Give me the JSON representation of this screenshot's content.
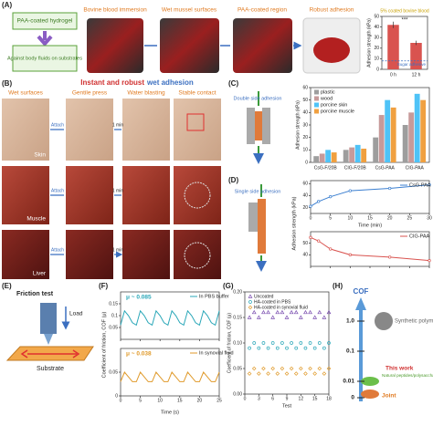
{
  "panel_a": {
    "label": "(A)",
    "box_top": "PAA-coated hydrogel",
    "box_bottom": "Against body fluids on substrates",
    "steps": [
      "Bovine blood immersion",
      "Wet mussel surfaces",
      "PAA-coated region",
      "Robust adhesion"
    ],
    "chart": {
      "type": "bar",
      "title": "5% coated bovine blood",
      "ylabel": "Adhesion strength (kPa)",
      "categories": [
        "0 h",
        "12 h"
      ],
      "values": [
        42,
        25
      ],
      "errors": [
        3,
        2
      ],
      "color": "#d9534f",
      "ylim": [
        0,
        50
      ],
      "yticks": [
        0,
        10,
        20,
        30,
        40,
        50
      ],
      "annotation": "***",
      "reference": {
        "label": "Sugar adhesive",
        "value": 8
      }
    }
  },
  "panel_b": {
    "label": "(B)",
    "title_1": "Instant and robust",
    "title_2": "wet adhesion",
    "columns": [
      "Wet surfaces",
      "Gentile press",
      "Water blasting",
      "Stable contact"
    ],
    "rows": [
      "Skin",
      "Muscle",
      "Liver"
    ],
    "attach": "Attach",
    "duration": "1 min"
  },
  "panel_c": {
    "label": "(C)",
    "diagram_label": "Double side adhesion",
    "chart": {
      "type": "bar",
      "ylabel": "Adhesion strength (kPa)",
      "categories": [
        "CsG-F/20B",
        "CIG-F/20B",
        "CsG-PAA",
        "CIG-PAA"
      ],
      "series": [
        {
          "name": "plastic",
          "color": "#9e9e9e",
          "values": [
            5,
            10,
            20,
            30
          ]
        },
        {
          "name": "wood",
          "color": "#c79a9a",
          "values": [
            7,
            12,
            38,
            40
          ]
        },
        {
          "name": "porcine skin",
          "color": "#4fc3f7",
          "values": [
            10,
            14,
            50,
            55
          ]
        },
        {
          "name": "porcine muscle",
          "color": "#f0a040",
          "values": [
            8,
            11,
            44,
            50
          ]
        }
      ],
      "ylim": [
        0,
        60
      ],
      "yticks": [
        0,
        10,
        20,
        30,
        40,
        50,
        60
      ],
      "legend": "top-left"
    }
  },
  "panel_d": {
    "label": "(D)",
    "diagram_label": "Single side adhesion",
    "xlabel": "Time (min)",
    "ylabel": "Adhesion strength (kPa)",
    "charts": [
      {
        "type": "line",
        "name": "CsG-PAA",
        "color": "#3b7fd0",
        "x": [
          0,
          2,
          5,
          10,
          20,
          30
        ],
        "values": [
          22,
          30,
          38,
          48,
          52,
          58
        ],
        "xlim": [
          0,
          30
        ],
        "xticks": [
          0,
          5,
          10,
          15,
          20,
          25,
          30
        ],
        "ylim": [
          10,
          65
        ],
        "yticks": [
          20,
          40,
          60
        ]
      },
      {
        "type": "line",
        "name": "CIG-PAA",
        "color": "#d9534f",
        "x": [
          0,
          2,
          5,
          10,
          20,
          30
        ],
        "values": [
          55,
          52,
          45,
          40,
          38,
          35
        ],
        "xlim": [
          0,
          30
        ],
        "xticks": [
          0,
          5,
          10,
          15,
          20,
          25,
          30
        ],
        "ylim": [
          30,
          60
        ],
        "yticks": [
          40,
          50
        ]
      }
    ]
  },
  "panel_e": {
    "label": "(E)",
    "title": "Friction test",
    "load": "Load",
    "substrate": "Substrate"
  },
  "panel_f": {
    "label": "(F)",
    "ylabel": "Coefficient of friction, COF (μ)",
    "xlabel": "Time (s)",
    "charts": [
      {
        "type": "line",
        "name": "In PBS buffer",
        "annotation": "μ ~ 0.085",
        "color": "#2aa7b8",
        "x": [
          0,
          1,
          2,
          3,
          4,
          5,
          6,
          7,
          8,
          9,
          10,
          11,
          12,
          13,
          14,
          15,
          16,
          17,
          18,
          19,
          20,
          21,
          22,
          23,
          24,
          25
        ],
        "values": [
          0.06,
          0.12,
          0.1,
          0.07,
          0.06,
          0.12,
          0.1,
          0.07,
          0.06,
          0.12,
          0.1,
          0.07,
          0.06,
          0.12,
          0.1,
          0.07,
          0.06,
          0.12,
          0.1,
          0.07,
          0.06,
          0.12,
          0.1,
          0.07,
          0.06,
          0.12
        ],
        "xlim": [
          0,
          25
        ],
        "xticks": [
          0,
          5,
          10,
          15,
          20,
          25
        ],
        "ylim": [
          0,
          0.2
        ],
        "yticks": [
          0.05,
          0.1,
          0.15
        ]
      },
      {
        "type": "line",
        "name": "In synovial fluid",
        "annotation": "μ ~ 0.038",
        "color": "#e09a2a",
        "x": [
          0,
          1,
          2,
          3,
          4,
          5,
          6,
          7,
          8,
          9,
          10,
          11,
          12,
          13,
          14,
          15,
          16,
          17,
          18,
          19,
          20,
          21,
          22,
          23,
          24,
          25
        ],
        "values": [
          0.03,
          0.05,
          0.04,
          0.03,
          0.03,
          0.05,
          0.04,
          0.03,
          0.03,
          0.05,
          0.04,
          0.03,
          0.03,
          0.05,
          0.04,
          0.03,
          0.03,
          0.05,
          0.04,
          0.03,
          0.03,
          0.05,
          0.04,
          0.03,
          0.03,
          0.05
        ],
        "xlim": [
          0,
          25
        ],
        "xticks": [
          0,
          5,
          10,
          15,
          20,
          25
        ],
        "ylim": [
          0,
          0.1
        ],
        "yticks": [
          0,
          0.05
        ]
      }
    ]
  },
  "panel_g": {
    "label": "(G)",
    "chart": {
      "type": "scatter",
      "ylabel": "Coefficient of friction, COF (μ)",
      "xlabel": "Test",
      "x": [
        1,
        2,
        3,
        4,
        5,
        6,
        7,
        8,
        9,
        10,
        11,
        12,
        13,
        14,
        15,
        16,
        17,
        18
      ],
      "series": [
        {
          "name": "Uncoated",
          "color": "#7b4fb0",
          "marker": "triangle",
          "values": [
            0.15,
            0.16,
            0.15,
            0.16,
            0.16,
            0.15,
            0.16,
            0.16,
            0.15,
            0.16,
            0.16,
            0.15,
            0.16,
            0.16,
            0.15,
            0.16,
            0.15,
            0.16
          ]
        },
        {
          "name": "HA-coated in PBS",
          "color": "#2aa7b8",
          "marker": "circle",
          "values": [
            0.09,
            0.1,
            0.09,
            0.1,
            0.09,
            0.1,
            0.09,
            0.1,
            0.09,
            0.1,
            0.09,
            0.1,
            0.09,
            0.1,
            0.09,
            0.1,
            0.09,
            0.1
          ]
        },
        {
          "name": "HA-coated in synovial fluid",
          "color": "#e09a2a",
          "marker": "diamond",
          "values": [
            0.04,
            0.05,
            0.04,
            0.05,
            0.04,
            0.05,
            0.04,
            0.05,
            0.04,
            0.05,
            0.04,
            0.05,
            0.04,
            0.05,
            0.04,
            0.05,
            0.04,
            0.05
          ]
        }
      ],
      "xlim": [
        0,
        18
      ],
      "xticks": [
        0,
        3,
        6,
        9,
        12,
        15,
        18
      ],
      "ylim": [
        0,
        0.2
      ],
      "yticks": [
        {
          "value": 0,
          "label": "0.00"
        },
        {
          "value": 0.05,
          "label": "0.05"
        },
        {
          "value": 0.1,
          "label": "0.10"
        },
        {
          "value": 0.15,
          "label": "0.15"
        },
        {
          "value": 0.2,
          "label": "0.20"
        }
      ]
    }
  },
  "panel_h": {
    "label": "(H)",
    "title": "COF",
    "ticks": [
      {
        "value": 1,
        "label": "1.0"
      },
      {
        "value": 0.1,
        "label": "0.1"
      },
      {
        "value": 0.01,
        "label": "0.01"
      },
      0
    ],
    "synthetic": "Synthetic polymer",
    "this_work": "This work",
    "natural": "Natural peptides/polysaccharide",
    "joint": "Joint"
  }
}
